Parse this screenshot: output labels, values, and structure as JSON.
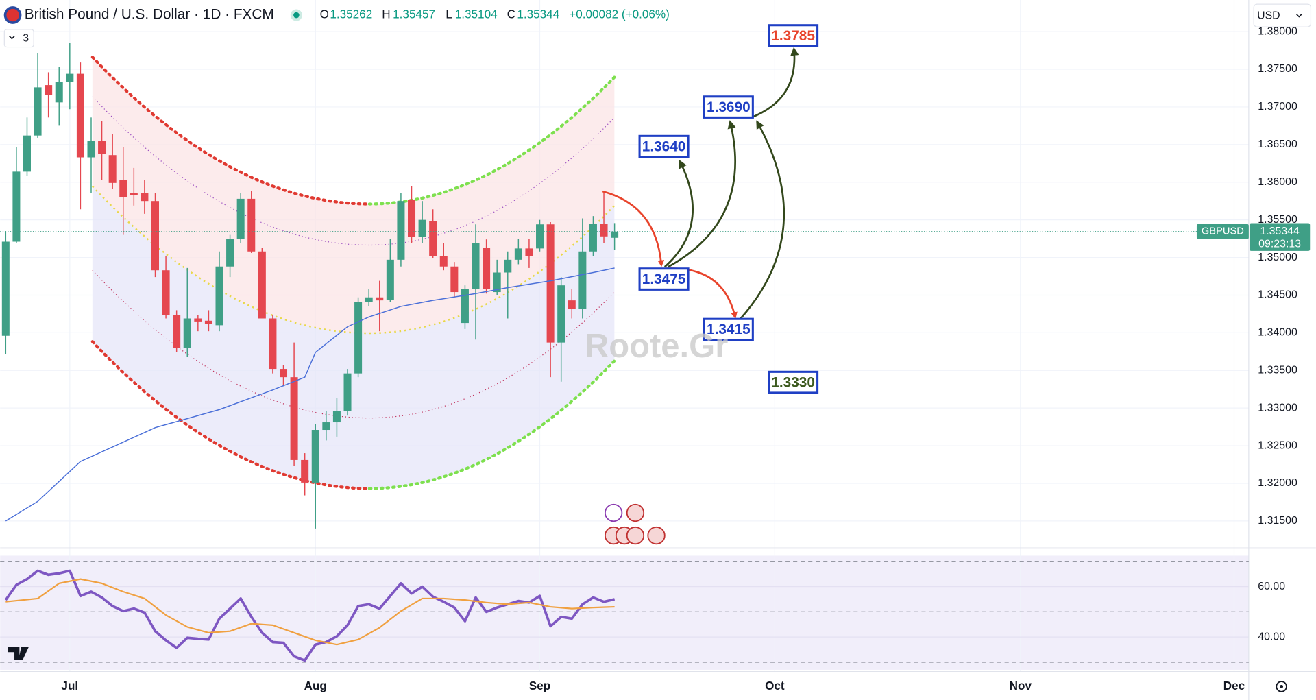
{
  "header": {
    "symbol": "British Pound / U.S. Dollar · 1D · FXCM",
    "ohlc": [
      {
        "label": "O",
        "value": 1.35262
      },
      {
        "label": "H",
        "value": 1.35457
      },
      {
        "label": "L",
        "value": 1.35104
      },
      {
        "label": "C",
        "value": 1.35344
      }
    ],
    "change": "+0.00082 (+0.06%)",
    "indicator_count": "3",
    "currency": "USD"
  },
  "watermark": "Roote.Gr",
  "chart_data": [
    {
      "type": "candlestick",
      "up_color": "#3f9f86",
      "down_color": "#e5474f",
      "xlim": [
        -0.52,
        116.37
      ],
      "ylim": [
        1.3114,
        1.3842
      ],
      "xticks": [
        {
          "value": 6,
          "label": "Jul"
        },
        {
          "value": 29,
          "label": "Aug"
        },
        {
          "value": 50,
          "label": "Sep"
        },
        {
          "value": 72,
          "label": "Oct"
        },
        {
          "value": 95,
          "label": "Nov"
        },
        {
          "value": 115,
          "label": "Dec"
        }
      ],
      "yticks": [
        {
          "value": 1.315,
          "label": "1.31500"
        },
        {
          "value": 1.32,
          "label": "1.32000"
        },
        {
          "value": 1.325,
          "label": "1.32500"
        },
        {
          "value": 1.33,
          "label": "1.33000"
        },
        {
          "value": 1.335,
          "label": "1.33500"
        },
        {
          "value": 1.34,
          "label": "1.34000"
        },
        {
          "value": 1.345,
          "label": "1.34500"
        },
        {
          "value": 1.35,
          "label": "1.35000"
        },
        {
          "value": 1.355,
          "label": "1.35500"
        },
        {
          "value": 1.36,
          "label": "1.36000"
        },
        {
          "value": 1.365,
          "label": "1.36500"
        },
        {
          "value": 1.37,
          "label": "1.37000"
        },
        {
          "value": 1.375,
          "label": "1.37500"
        },
        {
          "value": 1.38,
          "label": "1.38000"
        }
      ],
      "grid": true,
      "open": [
        1.3396,
        1.3521,
        1.3614,
        1.3662,
        1.3729,
        1.3706,
        1.3733,
        1.3744,
        1.3633,
        1.3655,
        1.3636,
        1.3603,
        1.3586,
        1.3586,
        1.3575,
        1.3483,
        1.3424,
        1.338,
        1.3419,
        1.3416,
        1.341,
        1.3488,
        1.3525,
        1.3578,
        1.3508,
        1.3419,
        1.3352,
        1.3341,
        1.3231,
        1.3201,
        1.3271,
        1.3281,
        1.3296,
        1.3346,
        1.3441,
        1.3447,
        1.3444,
        1.3497,
        1.3577,
        1.3527,
        1.3548,
        1.3502,
        1.3488,
        1.3413,
        1.3458,
        1.3513,
        1.3454,
        1.348,
        1.3497,
        1.3512,
        1.3512,
        1.3544,
        1.3387,
        1.3443,
        1.3432,
        1.3508,
        1.3545,
        1.35262
      ],
      "high": [
        1.3535,
        1.3647,
        1.3686,
        1.3771,
        1.3746,
        1.3753,
        1.3785,
        1.3759,
        1.3686,
        1.3681,
        1.3664,
        1.3647,
        1.3619,
        1.3603,
        1.3586,
        1.3502,
        1.343,
        1.3486,
        1.3424,
        1.343,
        1.3508,
        1.353,
        1.3586,
        1.3588,
        1.3513,
        1.3424,
        1.3357,
        1.3387,
        1.324,
        1.3279,
        1.3296,
        1.3313,
        1.3352,
        1.3447,
        1.3458,
        1.3469,
        1.3525,
        1.3586,
        1.3595,
        1.3575,
        1.3564,
        1.3519,
        1.3494,
        1.3463,
        1.3544,
        1.3524,
        1.3497,
        1.3508,
        1.3525,
        1.3525,
        1.355,
        1.3547,
        1.3474,
        1.3458,
        1.3552,
        1.3555,
        1.3588,
        1.35457
      ],
      "low": [
        1.3372,
        1.3519,
        1.3608,
        1.3659,
        1.3686,
        1.3675,
        1.3697,
        1.3564,
        1.3586,
        1.3603,
        1.3591,
        1.353,
        1.3569,
        1.3558,
        1.3474,
        1.3419,
        1.3374,
        1.3368,
        1.3402,
        1.3402,
        1.3402,
        1.3474,
        1.3519,
        1.3506,
        1.3419,
        1.3346,
        1.3329,
        1.3223,
        1.3184,
        1.314,
        1.3257,
        1.3262,
        1.329,
        1.3341,
        1.3435,
        1.3402,
        1.3441,
        1.3488,
        1.3519,
        1.3519,
        1.3499,
        1.3483,
        1.3447,
        1.3405,
        1.3391,
        1.3452,
        1.345,
        1.3419,
        1.3491,
        1.3486,
        1.3508,
        1.3341,
        1.3335,
        1.3419,
        1.3419,
        1.3502,
        1.3519,
        1.35104
      ],
      "close": [
        1.3521,
        1.3614,
        1.3662,
        1.3726,
        1.3716,
        1.3733,
        1.3744,
        1.3633,
        1.3655,
        1.3638,
        1.3599,
        1.358,
        1.3583,
        1.3575,
        1.3483,
        1.3424,
        1.338,
        1.3419,
        1.3415,
        1.3412,
        1.3488,
        1.3525,
        1.3578,
        1.3508,
        1.3419,
        1.3352,
        1.3341,
        1.3231,
        1.3201,
        1.3271,
        1.3281,
        1.3296,
        1.3346,
        1.3441,
        1.3447,
        1.3443,
        1.3497,
        1.3575,
        1.3527,
        1.355,
        1.3502,
        1.3488,
        1.3454,
        1.3458,
        1.3519,
        1.3458,
        1.348,
        1.3497,
        1.3512,
        1.3502,
        1.3544,
        1.3387,
        1.3463,
        1.3432,
        1.3508,
        1.3545,
        1.3528,
        1.35344
      ],
      "moving_average": {
        "color": "#4a6fd8",
        "x": [
          0,
          3,
          7,
          14,
          20,
          25,
          28,
          29,
          32,
          34,
          37,
          40,
          44,
          47,
          51,
          55,
          57
        ],
        "values": [
          1.315,
          1.3176,
          1.3229,
          1.3274,
          1.3298,
          1.3324,
          1.3341,
          1.3374,
          1.3408,
          1.3421,
          1.3435,
          1.3443,
          1.3452,
          1.346,
          1.3469,
          1.348,
          1.3486
        ]
      },
      "price_tag": {
        "symbol": "GBPUSD",
        "price": 1.35344,
        "countdown": "09:23:13",
        "color": "#3f9f86"
      },
      "annotations": [
        {
          "text": "1.3785",
          "color": "#e8442c"
        },
        {
          "text": "1.3690",
          "color": "#1f3fc4"
        },
        {
          "text": "1.3640",
          "color": "#1f3fc4"
        },
        {
          "text": "1.3475",
          "color": "#1f3fc4"
        },
        {
          "text": "1.3415",
          "color": "#1f3fc4"
        },
        {
          "text": "1.3330",
          "color": "#3d5a1e"
        }
      ]
    },
    {
      "type": "line",
      "ylim": [
        27,
        72.3
      ],
      "yticks": [
        {
          "value": 60,
          "label": "60.00"
        },
        {
          "value": 40,
          "label": "40.00"
        }
      ],
      "levels": [
        70,
        50,
        30
      ],
      "series": [
        {
          "color": "#7e57c2",
          "values": [
            54.7,
            60.7,
            63,
            66.3,
            64.7,
            65.3,
            66.3,
            56.3,
            58,
            55.7,
            52.3,
            50.3,
            51.3,
            49.7,
            42.3,
            38.7,
            35.7,
            39.7,
            39.3,
            39,
            47.3,
            51.3,
            55.3,
            48,
            41.7,
            38,
            37.7,
            32.3,
            30.7,
            37,
            38,
            40.3,
            44.7,
            52.3,
            53,
            51.3,
            56.3,
            61.3,
            57.3,
            60,
            56,
            54,
            51.7,
            46.3,
            55.7,
            50,
            51.7,
            53,
            54.3,
            53.7,
            56.3,
            44.3,
            48,
            47.3,
            53,
            55.7,
            54,
            55
          ]
        },
        {
          "color": "#f0a040",
          "x": [
            0,
            3,
            5,
            7,
            9,
            11,
            13,
            15,
            17,
            19,
            21,
            23,
            25,
            27,
            29,
            31,
            33,
            35,
            37,
            39,
            41,
            43,
            45,
            47,
            49,
            51,
            53,
            55,
            57
          ],
          "values": [
            54,
            55.3,
            61.3,
            63,
            61.3,
            58,
            55.3,
            48.7,
            44,
            41.7,
            42.3,
            45.3,
            44.7,
            41.7,
            38.7,
            37,
            39,
            43.7,
            50.3,
            55.3,
            55.3,
            54.7,
            53.7,
            53,
            53.7,
            52,
            51.3,
            51.7,
            52
          ]
        }
      ]
    }
  ]
}
